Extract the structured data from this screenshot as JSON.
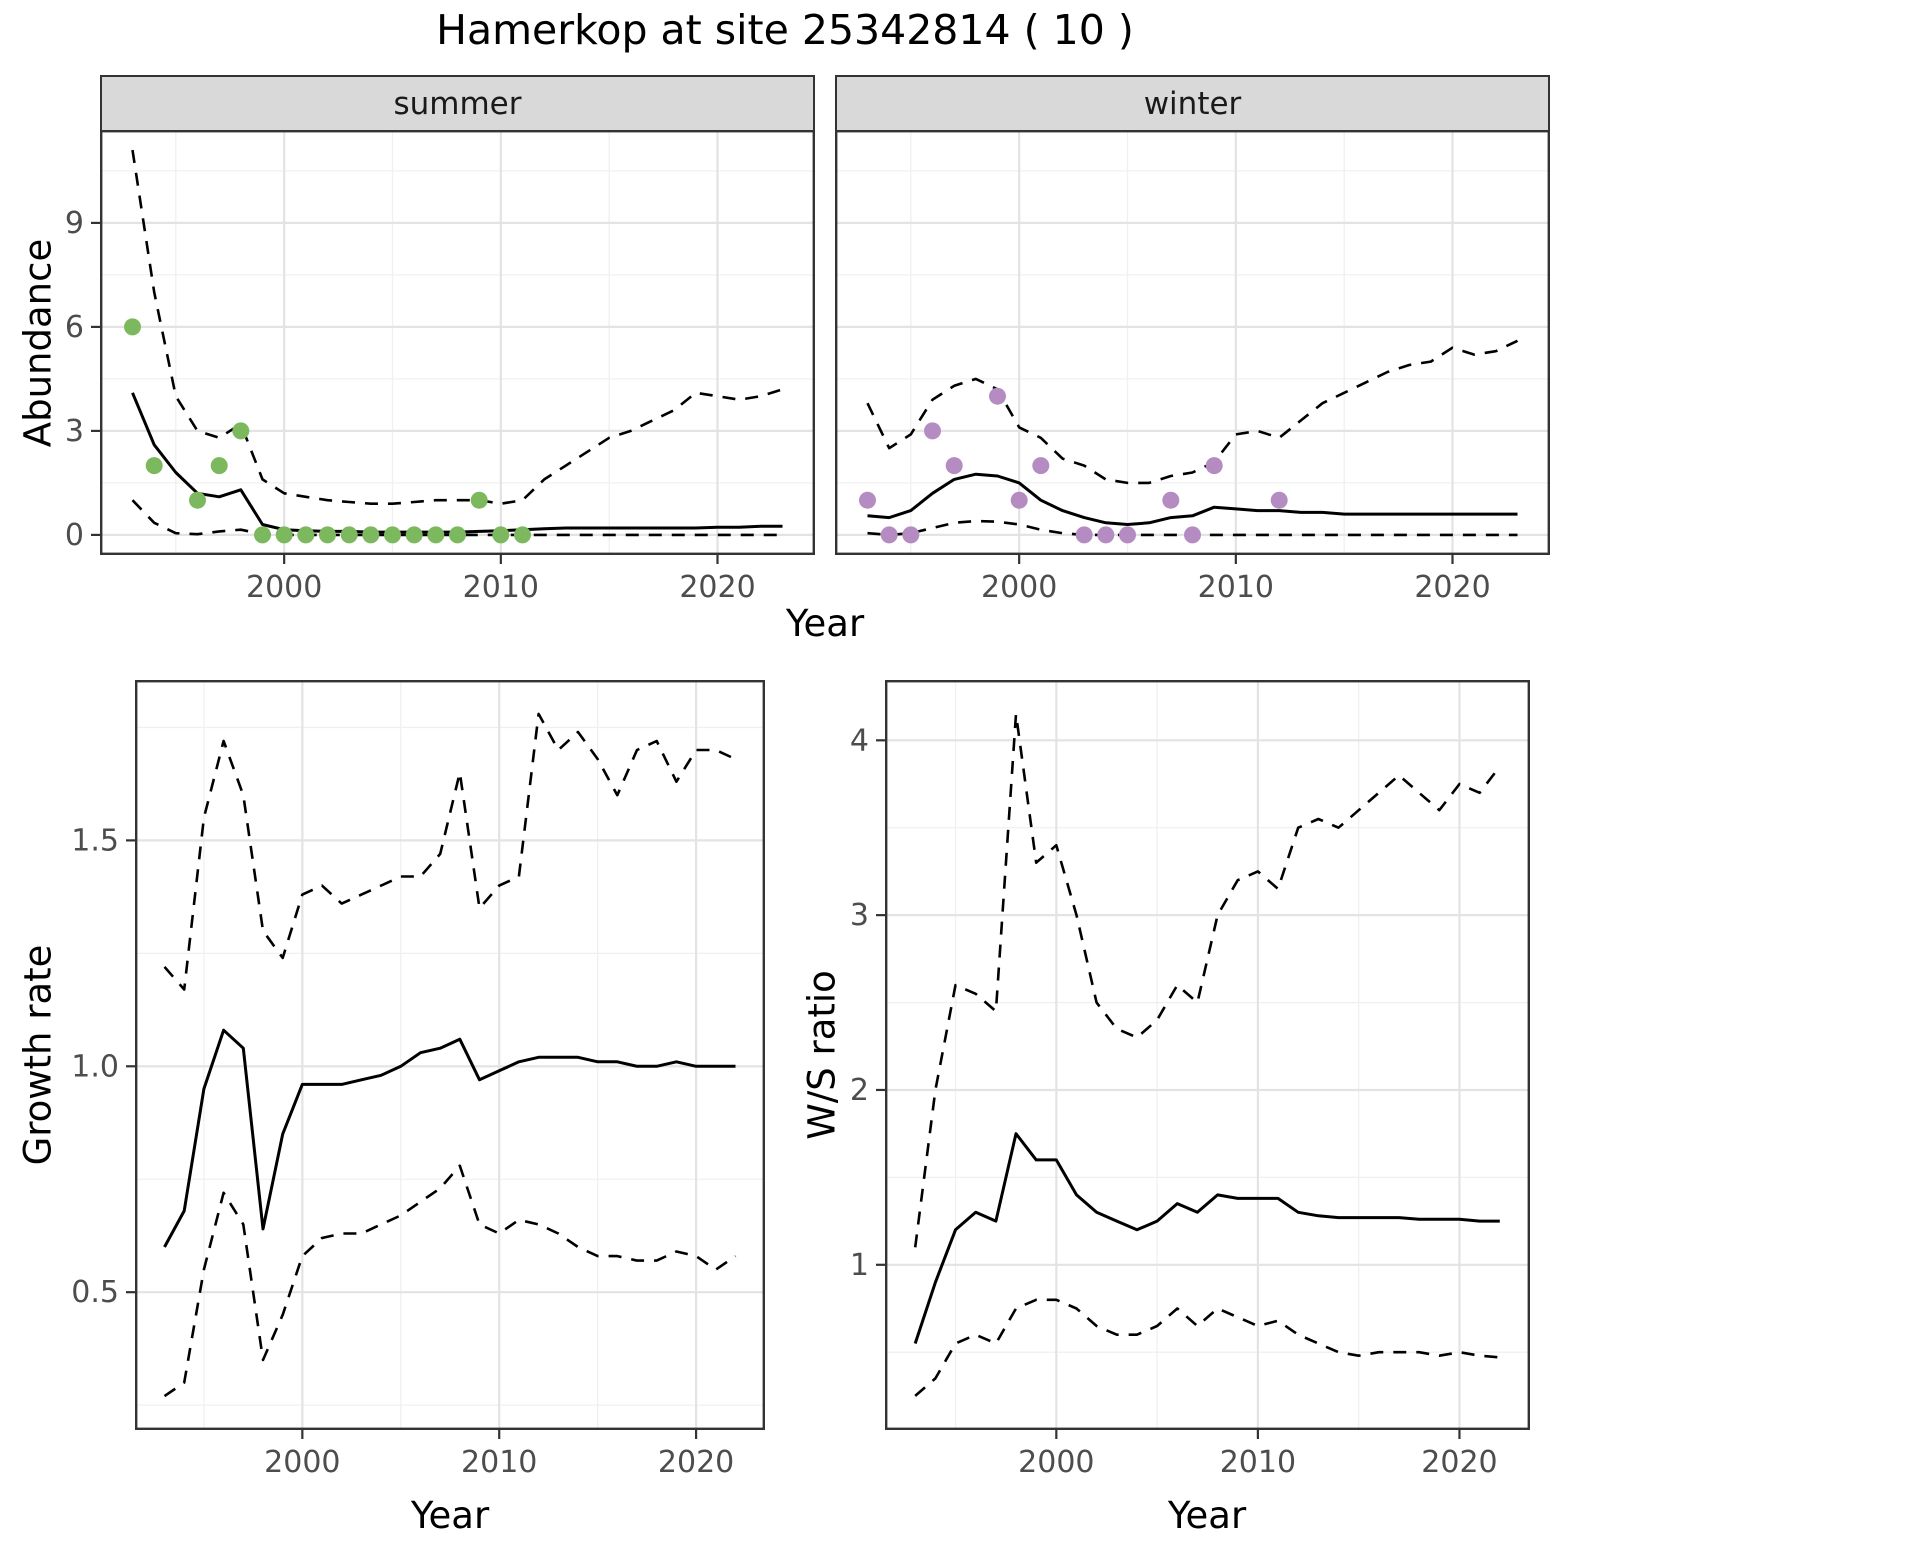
{
  "title": "Hamerkop at site 25342814 ( 10 )",
  "colors": {
    "summer_points": "#7cb85e",
    "winter_points": "#b48cc2",
    "line": "#000000",
    "strip_background": "#d9d9d9",
    "panel_border": "#333333",
    "major_grid": "#e3e3e3",
    "minor_grid": "#f0f0f0"
  },
  "chart_data": [
    {
      "id": "abundance-summer",
      "type": "line",
      "facet_label": "summer",
      "xlabel": "Year",
      "ylabel": "Abundance",
      "grid": true,
      "legend": "none",
      "xlim": [
        1991.5,
        2024.5
      ],
      "ylim": [
        -0.58,
        11.68
      ],
      "xticks": {
        "values": [
          2000,
          2010,
          2020
        ],
        "labels": [
          "2000",
          "2010",
          "2020"
        ]
      },
      "yticks": {
        "values": [
          0,
          3,
          6,
          9
        ],
        "labels": [
          "0",
          "3",
          "6",
          "9"
        ]
      },
      "x": [
        1993,
        1994,
        1995,
        1996,
        1997,
        1998,
        1999,
        2000,
        2001,
        2002,
        2003,
        2004,
        2005,
        2006,
        2007,
        2008,
        2009,
        2010,
        2011,
        2012,
        2013,
        2014,
        2015,
        2016,
        2017,
        2018,
        2019,
        2020,
        2021,
        2022,
        2023
      ],
      "series": [
        {
          "name": "median",
          "style": "solid",
          "values": [
            4.1,
            2.6,
            1.8,
            1.2,
            1.1,
            1.3,
            0.3,
            0.15,
            0.12,
            0.1,
            0.1,
            0.08,
            0.08,
            0.08,
            0.08,
            0.08,
            0.1,
            0.12,
            0.15,
            0.18,
            0.2,
            0.2,
            0.2,
            0.2,
            0.2,
            0.2,
            0.2,
            0.22,
            0.22,
            0.25,
            0.25
          ]
        },
        {
          "name": "upper-ci",
          "style": "dashed",
          "values": [
            11.1,
            7.0,
            4.0,
            3.0,
            2.8,
            3.2,
            1.6,
            1.2,
            1.1,
            1.0,
            0.95,
            0.9,
            0.9,
            0.95,
            1.0,
            1.0,
            1.0,
            0.9,
            1.0,
            1.6,
            2.0,
            2.4,
            2.8,
            3.0,
            3.3,
            3.6,
            4.1,
            4.0,
            3.9,
            4.0,
            4.2
          ]
        },
        {
          "name": "lower-ci",
          "style": "dashed",
          "values": [
            1.0,
            0.35,
            0.05,
            0.02,
            0.1,
            0.15,
            0.02,
            0,
            0,
            0,
            0,
            0,
            0,
            0,
            0,
            0,
            0,
            0,
            0,
            0,
            0,
            0,
            0,
            0,
            0,
            0,
            0,
            0,
            0,
            0,
            0
          ]
        }
      ],
      "points": {
        "name": "observed-counts",
        "color": "#7cb85e",
        "x": [
          1993,
          1994,
          1996,
          1997,
          1998,
          1999,
          2000,
          2001,
          2002,
          2003,
          2004,
          2005,
          2006,
          2007,
          2008,
          2009,
          2010,
          2011
        ],
        "y": [
          6,
          2,
          1,
          2,
          3,
          0,
          0,
          0,
          0,
          0,
          0,
          0,
          0,
          0,
          0,
          1,
          0,
          0
        ]
      }
    },
    {
      "id": "abundance-winter",
      "type": "line",
      "facet_label": "winter",
      "xlabel": "Year",
      "ylabel": "Abundance",
      "grid": true,
      "legend": "none",
      "xlim": [
        1991.5,
        2024.5
      ],
      "ylim": [
        -0.58,
        11.68
      ],
      "xticks": {
        "values": [
          2000,
          2010,
          2020
        ],
        "labels": [
          "2000",
          "2010",
          "2020"
        ]
      },
      "yticks": {
        "values": [
          0,
          3,
          6,
          9
        ],
        "labels": [
          "0",
          "3",
          "6",
          "9"
        ]
      },
      "x": [
        1993,
        1994,
        1995,
        1996,
        1997,
        1998,
        1999,
        2000,
        2001,
        2002,
        2003,
        2004,
        2005,
        2006,
        2007,
        2008,
        2009,
        2010,
        2011,
        2012,
        2013,
        2014,
        2015,
        2016,
        2017,
        2018,
        2019,
        2020,
        2021,
        2022,
        2023
      ],
      "series": [
        {
          "name": "median",
          "style": "solid",
          "values": [
            0.55,
            0.5,
            0.7,
            1.2,
            1.6,
            1.75,
            1.7,
            1.5,
            1.0,
            0.7,
            0.5,
            0.35,
            0.3,
            0.35,
            0.5,
            0.55,
            0.8,
            0.75,
            0.7,
            0.7,
            0.65,
            0.65,
            0.6,
            0.6,
            0.6,
            0.6,
            0.6,
            0.6,
            0.6,
            0.6,
            0.6
          ]
        },
        {
          "name": "upper-ci",
          "style": "dashed",
          "values": [
            3.8,
            2.5,
            2.9,
            3.9,
            4.3,
            4.5,
            4.2,
            3.1,
            2.8,
            2.2,
            2.0,
            1.6,
            1.5,
            1.5,
            1.7,
            1.8,
            2.1,
            2.9,
            3.0,
            2.8,
            3.3,
            3.8,
            4.1,
            4.4,
            4.7,
            4.9,
            5.0,
            5.4,
            5.2,
            5.3,
            5.6
          ]
        },
        {
          "name": "lower-ci",
          "style": "dashed",
          "values": [
            0.05,
            0,
            0.05,
            0.2,
            0.35,
            0.4,
            0.38,
            0.3,
            0.15,
            0.05,
            0,
            0,
            0,
            0,
            0,
            0,
            0,
            0,
            0,
            0,
            0,
            0,
            0,
            0,
            0,
            0,
            0,
            0,
            0,
            0,
            0
          ]
        }
      ],
      "points": {
        "name": "observed-counts",
        "color": "#b48cc2",
        "x": [
          1993,
          1994,
          1995,
          1996,
          1997,
          1999,
          2000,
          2001,
          2003,
          2004,
          2005,
          2007,
          2008,
          2009,
          2012
        ],
        "y": [
          1,
          0,
          0,
          3,
          2,
          4,
          1,
          2,
          0,
          0,
          0,
          1,
          0,
          2,
          1
        ]
      }
    },
    {
      "id": "growth-rate",
      "type": "line",
      "facet_label": "",
      "xlabel": "Year",
      "ylabel": "Growth rate",
      "grid": true,
      "legend": "none",
      "xlim": [
        1991.5,
        2023.5
      ],
      "ylim": [
        0.195,
        1.855
      ],
      "xticks": {
        "values": [
          2000,
          2010,
          2020
        ],
        "labels": [
          "2000",
          "2010",
          "2020"
        ]
      },
      "yticks": {
        "values": [
          0.5,
          1.0,
          1.5
        ],
        "labels": [
          "0.5",
          "1.0",
          "1.5"
        ]
      },
      "x": [
        1993,
        1994,
        1995,
        1996,
        1997,
        1998,
        1999,
        2000,
        2001,
        2002,
        2003,
        2004,
        2005,
        2006,
        2007,
        2008,
        2009,
        2010,
        2011,
        2012,
        2013,
        2014,
        2015,
        2016,
        2017,
        2018,
        2019,
        2020,
        2021,
        2022
      ],
      "series": [
        {
          "name": "median",
          "style": "solid",
          "values": [
            0.6,
            0.68,
            0.95,
            1.08,
            1.04,
            0.64,
            0.85,
            0.96,
            0.96,
            0.96,
            0.97,
            0.98,
            1.0,
            1.03,
            1.04,
            1.06,
            0.97,
            0.99,
            1.01,
            1.02,
            1.02,
            1.02,
            1.01,
            1.01,
            1.0,
            1.0,
            1.01,
            1.0,
            1.0,
            1.0
          ]
        },
        {
          "name": "upper-ci",
          "style": "dashed",
          "values": [
            1.22,
            1.17,
            1.55,
            1.72,
            1.6,
            1.3,
            1.24,
            1.38,
            1.4,
            1.36,
            1.38,
            1.4,
            1.42,
            1.42,
            1.47,
            1.65,
            1.35,
            1.4,
            1.42,
            1.78,
            1.7,
            1.74,
            1.68,
            1.6,
            1.7,
            1.72,
            1.63,
            1.7,
            1.7,
            1.68
          ]
        },
        {
          "name": "lower-ci",
          "style": "dashed",
          "values": [
            0.27,
            0.3,
            0.55,
            0.72,
            0.65,
            0.35,
            0.45,
            0.58,
            0.62,
            0.63,
            0.63,
            0.65,
            0.67,
            0.7,
            0.73,
            0.78,
            0.65,
            0.63,
            0.66,
            0.65,
            0.63,
            0.6,
            0.58,
            0.58,
            0.57,
            0.57,
            0.59,
            0.58,
            0.55,
            0.58
          ]
        }
      ]
    },
    {
      "id": "ws-ratio",
      "type": "line",
      "facet_label": "",
      "xlabel": "Year",
      "ylabel": "W/S ratio",
      "grid": true,
      "legend": "none",
      "xlim": [
        1991.5,
        2023.5
      ],
      "ylim": [
        0.055,
        4.345
      ],
      "xticks": {
        "values": [
          2000,
          2010,
          2020
        ],
        "labels": [
          "2000",
          "2010",
          "2020"
        ]
      },
      "yticks": {
        "values": [
          1,
          2,
          3,
          4
        ],
        "labels": [
          "1",
          "2",
          "3",
          "4"
        ]
      },
      "x": [
        1993,
        1994,
        1995,
        1996,
        1997,
        1998,
        1999,
        2000,
        2001,
        2002,
        2003,
        2004,
        2005,
        2006,
        2007,
        2008,
        2009,
        2010,
        2011,
        2012,
        2013,
        2014,
        2015,
        2016,
        2017,
        2018,
        2019,
        2020,
        2021,
        2022
      ],
      "series": [
        {
          "name": "median",
          "style": "solid",
          "values": [
            0.55,
            0.9,
            1.2,
            1.3,
            1.25,
            1.75,
            1.6,
            1.6,
            1.4,
            1.3,
            1.25,
            1.2,
            1.25,
            1.35,
            1.3,
            1.4,
            1.38,
            1.38,
            1.38,
            1.3,
            1.28,
            1.27,
            1.27,
            1.27,
            1.27,
            1.26,
            1.26,
            1.26,
            1.25,
            1.25
          ]
        },
        {
          "name": "upper-ci",
          "style": "dashed",
          "values": [
            1.1,
            2.0,
            2.6,
            2.55,
            2.45,
            4.15,
            3.3,
            3.4,
            3.0,
            2.5,
            2.35,
            2.3,
            2.4,
            2.6,
            2.5,
            3.0,
            3.2,
            3.25,
            3.15,
            3.5,
            3.55,
            3.5,
            3.6,
            3.7,
            3.8,
            3.7,
            3.6,
            3.75,
            3.7,
            3.85
          ]
        },
        {
          "name": "lower-ci",
          "style": "dashed",
          "values": [
            0.25,
            0.35,
            0.55,
            0.6,
            0.55,
            0.75,
            0.8,
            0.8,
            0.75,
            0.65,
            0.6,
            0.6,
            0.65,
            0.75,
            0.65,
            0.75,
            0.7,
            0.65,
            0.68,
            0.6,
            0.55,
            0.5,
            0.48,
            0.5,
            0.5,
            0.5,
            0.48,
            0.5,
            0.48,
            0.47
          ]
        }
      ]
    }
  ]
}
